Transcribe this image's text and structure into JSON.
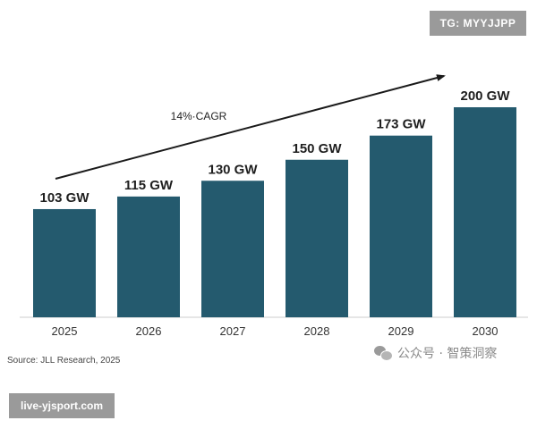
{
  "chart_data": {
    "type": "bar",
    "categories": [
      "2025",
      "2026",
      "2027",
      "2028",
      "2029",
      "2030"
    ],
    "values": [
      103,
      115,
      130,
      150,
      173,
      200
    ],
    "data_labels": [
      "103 GW",
      "115 GW",
      "130 GW",
      "150 GW",
      "173 GW",
      "200 GW"
    ],
    "unit": "GW",
    "title": "",
    "xlabel": "",
    "ylabel": "",
    "ylim": [
      0,
      200
    ],
    "grid": false,
    "legend": "none",
    "bar_color": "#245a6e",
    "annotation": {
      "text": "14%·CAGR",
      "type": "trend-arrow"
    }
  },
  "source": "Source: JLL Research, 2025",
  "watermarks": {
    "telegram": "TG: MYYJJPP",
    "site": "live-yjsport.com",
    "wechat": "公众号 · 智策洞察",
    "wechat_icon": "wechat-icon"
  }
}
